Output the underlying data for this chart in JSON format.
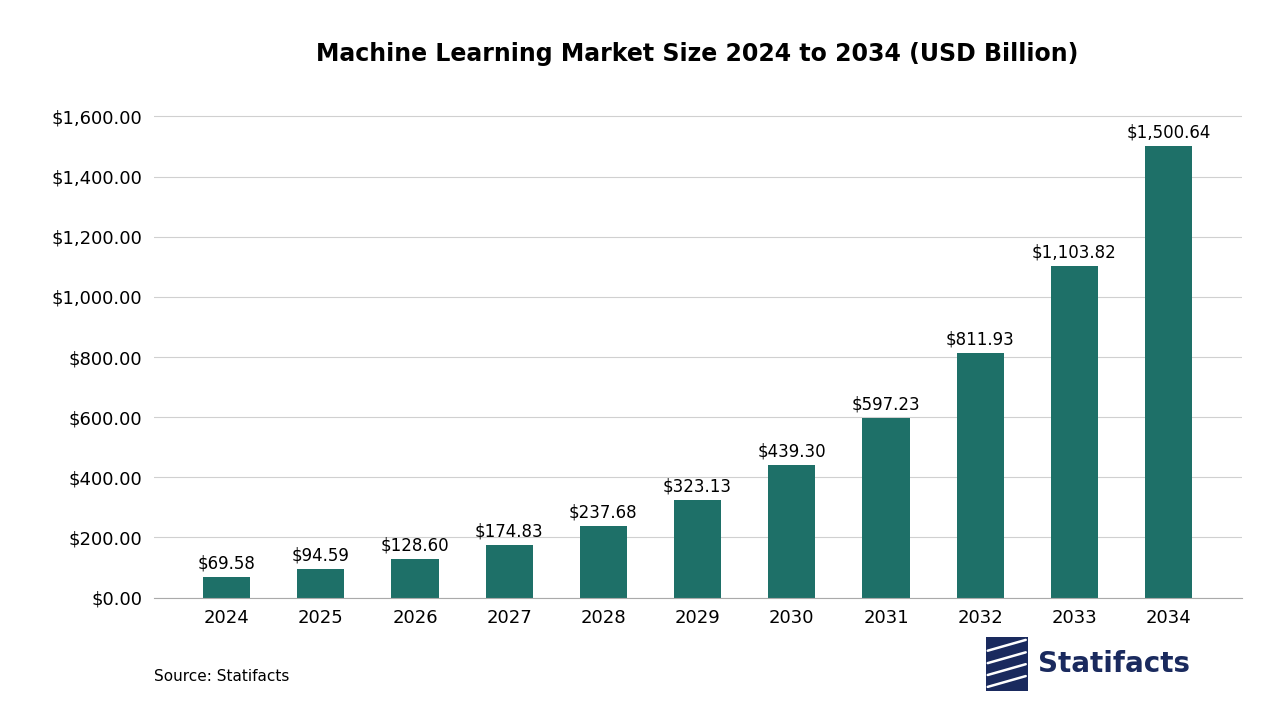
{
  "title": "Machine Learning Market Size 2024 to 2034 (USD Billion)",
  "categories": [
    "2024",
    "2025",
    "2026",
    "2027",
    "2028",
    "2029",
    "2030",
    "2031",
    "2032",
    "2033",
    "2034"
  ],
  "values": [
    69.58,
    94.59,
    128.6,
    174.83,
    237.68,
    323.13,
    439.3,
    597.23,
    811.93,
    1103.82,
    1500.64
  ],
  "labels": [
    "$69.58",
    "$94.59",
    "$128.60",
    "$174.83",
    "$237.68",
    "$323.13",
    "$439.30",
    "$597.23",
    "$811.93",
    "$1,103.82",
    "$1,500.64"
  ],
  "bar_color": "#1e7068",
  "background_color": "#ffffff",
  "ylim": [
    0,
    1700
  ],
  "yticks": [
    0,
    200,
    400,
    600,
    800,
    1000,
    1200,
    1400,
    1600
  ],
  "ytick_labels": [
    "$0.00",
    "$200.00",
    "$400.00",
    "$600.00",
    "$800.00",
    "$1,000.00",
    "$1,200.00",
    "$1,400.00",
    "$1,600.00"
  ],
  "grid_color": "#d0d0d0",
  "title_fontsize": 17,
  "tick_fontsize": 13,
  "label_fontsize": 12,
  "source_text": "Source: Statifacts",
  "source_fontsize": 11,
  "logo_text": "Statifacts",
  "logo_fontsize": 20,
  "logo_color": "#1a2a5e",
  "bar_width": 0.5
}
